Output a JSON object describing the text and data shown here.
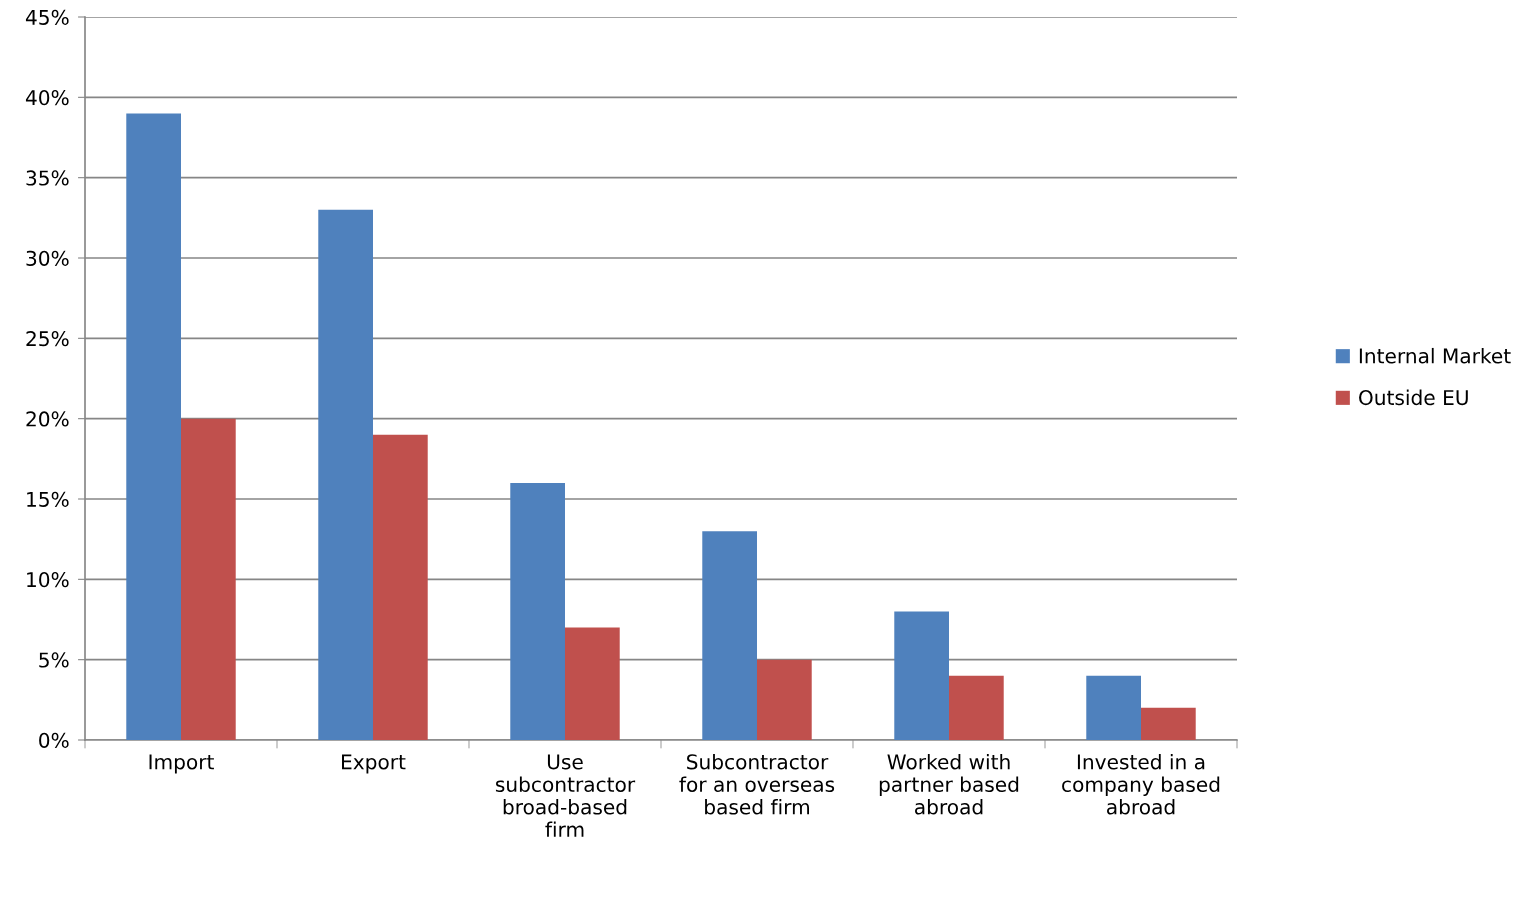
{
  "chart_data": {
    "type": "bar",
    "categories": [
      "Import",
      "Export",
      "Use\nsubcontractor\nbroad-based\nfirm",
      "Subcontractor\nfor an overseas\nbased firm",
      "Worked with\npartner based\nabroad",
      "Invested in a\ncompany based\nabroad"
    ],
    "series": [
      {
        "name": "Internal Market",
        "color": "#4f81bd",
        "values": [
          39,
          33,
          16,
          13,
          8,
          4
        ]
      },
      {
        "name": "Outside EU",
        "color": "#c0504d",
        "values": [
          20,
          19,
          7,
          5,
          4,
          2
        ]
      }
    ],
    "ylim": [
      0,
      45
    ],
    "yticks": [
      {
        "value": 0,
        "label": "0%"
      },
      {
        "value": 5,
        "label": "5%"
      },
      {
        "value": 10,
        "label": "10%"
      },
      {
        "value": 15,
        "label": "15%"
      },
      {
        "value": 20,
        "label": "20%"
      },
      {
        "value": 25,
        "label": "25%"
      },
      {
        "value": 30,
        "label": "30%"
      },
      {
        "value": 35,
        "label": "35%"
      },
      {
        "value": 40,
        "label": "40%"
      },
      {
        "value": 45,
        "label": "45%"
      }
    ],
    "grid": "y",
    "legend": "right"
  }
}
